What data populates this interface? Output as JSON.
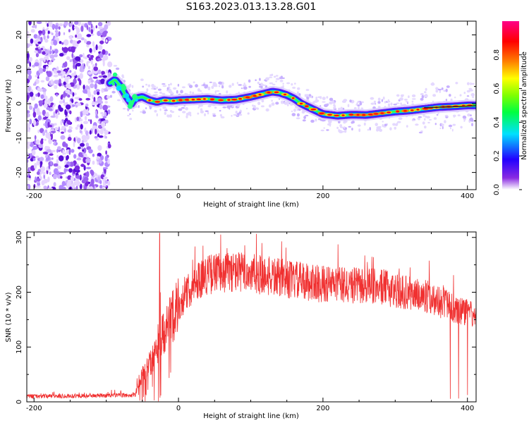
{
  "title": "S163.2023.013.13.28.G01",
  "chart_data": [
    {
      "type": "heatmap",
      "xlabel": "Height of straight line (km)",
      "ylabel": "Frequency (Hz)",
      "xlim": [
        -210,
        412
      ],
      "ylim": [
        -25,
        24
      ],
      "xticks": [
        "-200",
        "0",
        "200",
        "400"
      ],
      "yticks": [
        "-20",
        "-10",
        "0",
        "10",
        "20"
      ],
      "colorbar": {
        "label": "Normalized spectral amplitude",
        "range": [
          0,
          1
        ],
        "ticks": [
          "0.0",
          "0.2",
          "0.4",
          "0.6",
          "0.8"
        ]
      },
      "ridge": {
        "x": [
          -95,
          -88,
          -80,
          -72,
          -65,
          -60,
          -50,
          -40,
          -30,
          -20,
          -10,
          0,
          20,
          40,
          60,
          80,
          100,
          120,
          130,
          140,
          150,
          160,
          170,
          180,
          190,
          200,
          220,
          240,
          260,
          280,
          300,
          320,
          340,
          360,
          380,
          400,
          412
        ],
        "y": [
          6,
          7,
          5,
          2,
          0,
          1.5,
          2,
          1,
          0.5,
          1,
          0.8,
          1,
          1.2,
          1.4,
          1,
          1.2,
          2,
          3,
          3.5,
          3.2,
          2.5,
          1.5,
          0,
          -1,
          -2,
          -3,
          -3.5,
          -3.2,
          -3.3,
          -2.8,
          -2.3,
          -2,
          -1.5,
          -1,
          -0.8,
          -0.5,
          -0.5
        ]
      }
    },
    {
      "type": "line",
      "xlabel": "Height of straight line (km)",
      "ylabel": "SNR (10 * v/v)",
      "xlim": [
        -210,
        412
      ],
      "ylim": [
        0,
        310
      ],
      "xticks": [
        "-200",
        "0",
        "200",
        "400"
      ],
      "yticks": [
        "0",
        "100",
        "200",
        "300"
      ],
      "color": "#f03030",
      "envelope": {
        "x": [
          -210,
          -60,
          -55,
          -45,
          -35,
          -25,
          -15,
          -5,
          5,
          15,
          25,
          35,
          50,
          80,
          120,
          160,
          200,
          240,
          280,
          320,
          350,
          380,
          412
        ],
        "y": [
          10,
          12,
          40,
          60,
          80,
          110,
          140,
          165,
          185,
          205,
          220,
          230,
          235,
          238,
          230,
          222,
          215,
          212,
          210,
          198,
          190,
          170,
          155
        ]
      },
      "spike": {
        "x": -26,
        "y": 308
      }
    }
  ]
}
